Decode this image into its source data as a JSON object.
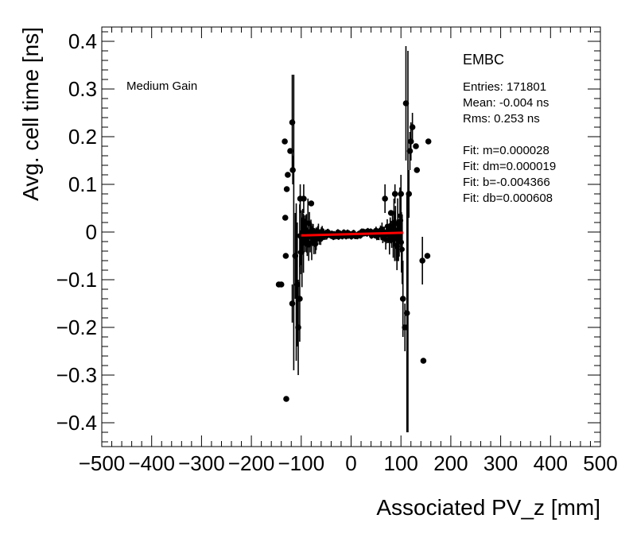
{
  "chart_data": {
    "type": "scatter",
    "title": "",
    "xlabel": "Associated PV_z [mm]",
    "ylabel": "Avg. cell time [ns]",
    "xlim": [
      -500,
      500
    ],
    "ylim": [
      -0.45,
      0.43
    ],
    "x_ticks": [
      -500,
      -400,
      -300,
      -200,
      -100,
      0,
      100,
      200,
      300,
      400,
      500
    ],
    "x_tick_labels": [
      "−500",
      "−400",
      "−300",
      "−200",
      "−100",
      "0",
      "100",
      "200",
      "300",
      "400",
      "500"
    ],
    "y_ticks": [
      -0.4,
      -0.3,
      -0.2,
      -0.1,
      0,
      0.1,
      0.2,
      0.3,
      0.4
    ],
    "y_tick_labels": [
      "−0.4",
      "−0.3",
      "−0.2",
      "−0.1",
      "0",
      "0.1",
      "0.2",
      "0.3",
      "0.4"
    ],
    "annotation": "Medium Gain",
    "stats": {
      "title": "EMBC",
      "entries": "Entries: 171801",
      "mean": "Mean: -0.004 ns",
      "rms": "Rms: 0.253 ns",
      "fit_m": "Fit: m=0.000028",
      "fit_dm": "Fit: dm=0.000019",
      "fit_b": "Fit: b=-0.004366",
      "fit_db": "Fit: db=0.000608"
    },
    "fit_line": {
      "x": [
        -100,
        105
      ],
      "y": [
        -0.0071,
        -0.0014
      ],
      "color": "#ff0000"
    },
    "series": [
      {
        "name": "outliers",
        "points": [
          {
            "x": -145,
            "y": -0.11,
            "err": 0.0
          },
          {
            "x": -140,
            "y": -0.11,
            "err": 0.0
          },
          {
            "x": -133,
            "y": 0.19,
            "err": 0.0
          },
          {
            "x": -132,
            "y": 0.03,
            "err": 0.0
          },
          {
            "x": -131,
            "y": -0.05,
            "err": 0.0
          },
          {
            "x": -129,
            "y": 0.09,
            "err": 0.0
          },
          {
            "x": -127,
            "y": 0.12,
            "err": 0.0
          },
          {
            "x": -130,
            "y": -0.35,
            "err": 0.0
          },
          {
            "x": -122,
            "y": 0.17,
            "err": 0.0
          },
          {
            "x": -118,
            "y": 0.23,
            "err": 0.1
          },
          {
            "x": -117,
            "y": 0.13,
            "err": 0.03
          },
          {
            "x": -118,
            "y": -0.15,
            "err": 0.04
          },
          {
            "x": -112,
            "y": -0.05,
            "err": 0.09
          },
          {
            "x": -108,
            "y": -0.11,
            "err": 0.13
          },
          {
            "x": -106,
            "y": -0.2,
            "err": 0.1
          },
          {
            "x": -103,
            "y": -0.14,
            "err": 0.09
          },
          {
            "x": -102,
            "y": 0.07,
            "err": 0.03
          },
          {
            "x": -95,
            "y": 0.07,
            "err": 0.03
          },
          {
            "x": -80,
            "y": 0.06,
            "err": 0.0
          },
          {
            "x": -72,
            "y": -0.025,
            "err": 0.0
          },
          {
            "x": 68,
            "y": 0.07,
            "err": 0.03
          },
          {
            "x": 80,
            "y": 0.04,
            "err": 0.0
          },
          {
            "x": 88,
            "y": 0.08,
            "err": 0.02
          },
          {
            "x": 92,
            "y": -0.03,
            "err": 0.03
          },
          {
            "x": 100,
            "y": 0.08,
            "err": 0.04
          },
          {
            "x": 104,
            "y": -0.14,
            "err": 0.08
          },
          {
            "x": 108,
            "y": -0.2,
            "err": 0.05
          },
          {
            "x": 110,
            "y": 0.27,
            "err": 0.12
          },
          {
            "x": 112,
            "y": -0.17,
            "err": 0.25
          },
          {
            "x": 116,
            "y": 0.08,
            "err": 0.05
          },
          {
            "x": 118,
            "y": 0.17,
            "err": 0.04
          },
          {
            "x": 120,
            "y": 0.19,
            "err": 0.04
          },
          {
            "x": 123,
            "y": 0.22,
            "err": 0.03
          },
          {
            "x": 130,
            "y": 0.18,
            "err": 0.0
          },
          {
            "x": 132,
            "y": 0.13,
            "err": 0.0
          },
          {
            "x": 143,
            "y": -0.06,
            "err": 0.05
          },
          {
            "x": 145,
            "y": -0.27,
            "err": 0.0
          },
          {
            "x": 153,
            "y": -0.05,
            "err": 0.0
          },
          {
            "x": 155,
            "y": 0.19,
            "err": 0.0
          }
        ]
      }
    ]
  }
}
